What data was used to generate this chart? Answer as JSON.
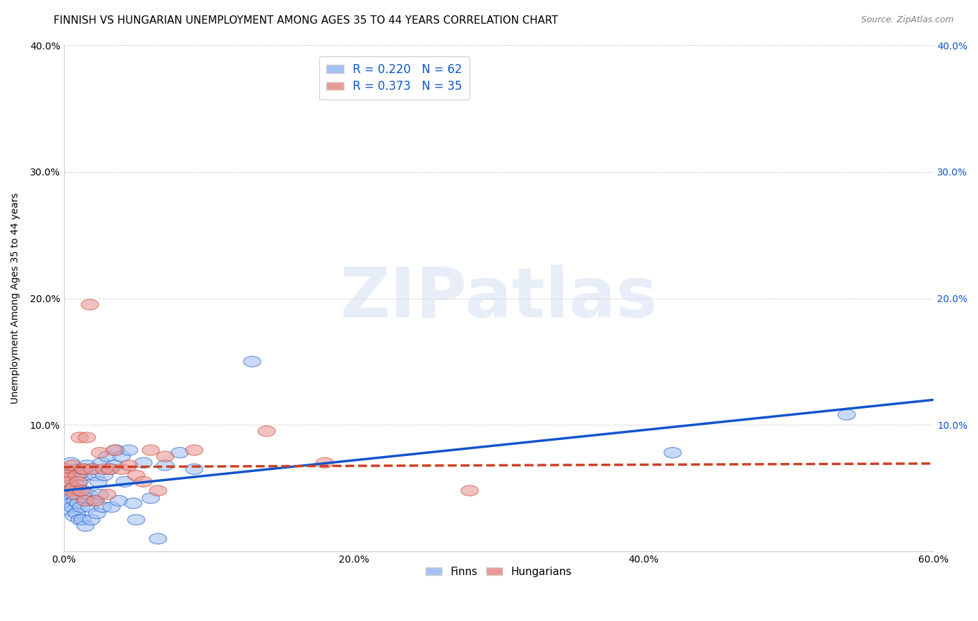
{
  "title": "FINNISH VS HUNGARIAN UNEMPLOYMENT AMONG AGES 35 TO 44 YEARS CORRELATION CHART",
  "source": "Source: ZipAtlas.com",
  "ylabel": "Unemployment Among Ages 35 to 44 years",
  "xlim": [
    0,
    0.6
  ],
  "ylim": [
    0,
    0.4
  ],
  "xticks": [
    0.0,
    0.1,
    0.2,
    0.3,
    0.4,
    0.5,
    0.6
  ],
  "yticks": [
    0.0,
    0.1,
    0.2,
    0.3,
    0.4
  ],
  "xtick_labels": [
    "0.0%",
    "",
    "20.0%",
    "",
    "40.0%",
    "",
    "60.0%"
  ],
  "ytick_labels": [
    "",
    "10.0%",
    "20.0%",
    "30.0%",
    "40.0%"
  ],
  "finn_color": "#a4c2f4",
  "hung_color": "#ea9999",
  "finn_fill": "#a4c2f4",
  "hung_fill": "#ea9999",
  "finn_line_color": "#1155cc",
  "hung_line_color": "#cc4125",
  "R_finn": 0.22,
  "N_finn": 62,
  "R_hung": 0.373,
  "N_hung": 35,
  "legend_finn": "Finns",
  "legend_hung": "Hungarians",
  "title_fontsize": 11,
  "axis_label_fontsize": 10,
  "tick_fontsize": 10,
  "finn_x": [
    0.001,
    0.002,
    0.002,
    0.003,
    0.003,
    0.004,
    0.004,
    0.005,
    0.005,
    0.005,
    0.006,
    0.006,
    0.007,
    0.007,
    0.008,
    0.008,
    0.009,
    0.009,
    0.01,
    0.01,
    0.011,
    0.011,
    0.012,
    0.012,
    0.013,
    0.013,
    0.014,
    0.015,
    0.015,
    0.016,
    0.017,
    0.018,
    0.019,
    0.02,
    0.021,
    0.022,
    0.023,
    0.024,
    0.025,
    0.026,
    0.027,
    0.028,
    0.03,
    0.032,
    0.033,
    0.035,
    0.036,
    0.038,
    0.04,
    0.042,
    0.045,
    0.048,
    0.05,
    0.055,
    0.06,
    0.065,
    0.07,
    0.08,
    0.09,
    0.13,
    0.42,
    0.54
  ],
  "finn_y": [
    0.065,
    0.06,
    0.055,
    0.058,
    0.048,
    0.062,
    0.042,
    0.07,
    0.038,
    0.032,
    0.045,
    0.035,
    0.05,
    0.028,
    0.055,
    0.04,
    0.048,
    0.03,
    0.065,
    0.038,
    0.055,
    0.025,
    0.062,
    0.035,
    0.048,
    0.025,
    0.06,
    0.042,
    0.02,
    0.068,
    0.045,
    0.035,
    0.025,
    0.065,
    0.04,
    0.06,
    0.03,
    0.055,
    0.045,
    0.07,
    0.035,
    0.06,
    0.075,
    0.065,
    0.035,
    0.068,
    0.08,
    0.04,
    0.075,
    0.055,
    0.08,
    0.038,
    0.025,
    0.07,
    0.042,
    0.01,
    0.068,
    0.078,
    0.065,
    0.15,
    0.078,
    0.108
  ],
  "hung_x": [
    0.001,
    0.002,
    0.003,
    0.004,
    0.005,
    0.006,
    0.007,
    0.008,
    0.009,
    0.01,
    0.011,
    0.012,
    0.013,
    0.014,
    0.015,
    0.016,
    0.018,
    0.02,
    0.022,
    0.025,
    0.028,
    0.03,
    0.032,
    0.035,
    0.04,
    0.045,
    0.05,
    0.055,
    0.06,
    0.065,
    0.07,
    0.09,
    0.14,
    0.18,
    0.28
  ],
  "hung_y": [
    0.065,
    0.06,
    0.058,
    0.055,
    0.048,
    0.068,
    0.05,
    0.045,
    0.06,
    0.055,
    0.09,
    0.048,
    0.065,
    0.065,
    0.04,
    0.09,
    0.195,
    0.065,
    0.04,
    0.078,
    0.065,
    0.045,
    0.065,
    0.08,
    0.065,
    0.068,
    0.06,
    0.055,
    0.08,
    0.048,
    0.075,
    0.08,
    0.095,
    0.07,
    0.048
  ]
}
